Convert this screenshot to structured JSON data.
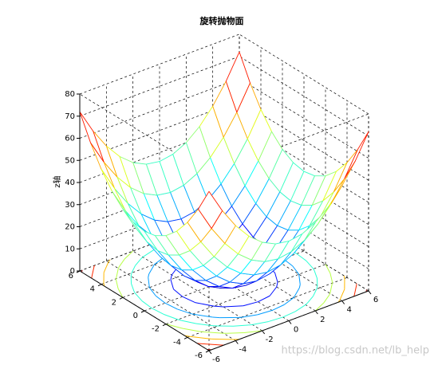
{
  "chart_data": {
    "type": "surface",
    "title": "旋转抛物面",
    "zlabel": "z轴",
    "watermark": "https://blog.csdn.net/lb_help",
    "x": [
      -6,
      -5,
      -4,
      -3,
      -2,
      -1,
      0,
      1,
      2,
      3,
      4,
      5,
      6
    ],
    "y": [
      -6,
      -5,
      -4,
      -3,
      -2,
      -1,
      0,
      1,
      2,
      3,
      4,
      5,
      6
    ],
    "z": [
      [
        72,
        61,
        52,
        45,
        40,
        37,
        36,
        37,
        40,
        45,
        52,
        61,
        72
      ],
      [
        61,
        50,
        41,
        34,
        29,
        26,
        25,
        26,
        29,
        34,
        41,
        50,
        61
      ],
      [
        52,
        41,
        32,
        25,
        20,
        17,
        16,
        17,
        20,
        25,
        32,
        41,
        52
      ],
      [
        45,
        34,
        25,
        18,
        13,
        10,
        9,
        10,
        13,
        18,
        25,
        34,
        45
      ],
      [
        40,
        29,
        20,
        13,
        8,
        5,
        4,
        5,
        8,
        13,
        20,
        29,
        40
      ],
      [
        37,
        26,
        17,
        10,
        5,
        2,
        1,
        2,
        5,
        10,
        17,
        26,
        37
      ],
      [
        36,
        25,
        16,
        9,
        4,
        1,
        0,
        1,
        4,
        9,
        16,
        25,
        36
      ],
      [
        37,
        26,
        17,
        10,
        5,
        2,
        1,
        2,
        5,
        10,
        17,
        26,
        37
      ],
      [
        40,
        29,
        20,
        13,
        8,
        5,
        4,
        5,
        8,
        13,
        20,
        29,
        40
      ],
      [
        45,
        34,
        25,
        18,
        13,
        10,
        9,
        10,
        13,
        18,
        25,
        34,
        45
      ],
      [
        52,
        41,
        32,
        25,
        20,
        17,
        16,
        17,
        20,
        25,
        32,
        41,
        52
      ],
      [
        61,
        50,
        41,
        34,
        29,
        26,
        25,
        26,
        29,
        34,
        41,
        50,
        61
      ],
      [
        72,
        61,
        52,
        45,
        40,
        37,
        36,
        37,
        40,
        45,
        52,
        61,
        72
      ]
    ],
    "xlim": [
      -6,
      6
    ],
    "ylim": [
      -6,
      6
    ],
    "zlim": [
      0,
      80
    ],
    "xticks": [
      -6,
      -4,
      -2,
      0,
      2,
      4,
      6
    ],
    "yticks": [
      -6,
      -4,
      -2,
      0,
      2,
      4,
      6
    ],
    "zticks": [
      0,
      10,
      20,
      30,
      40,
      50,
      60,
      70,
      80
    ],
    "grid": true,
    "colormap": "jet",
    "contour": true
  }
}
